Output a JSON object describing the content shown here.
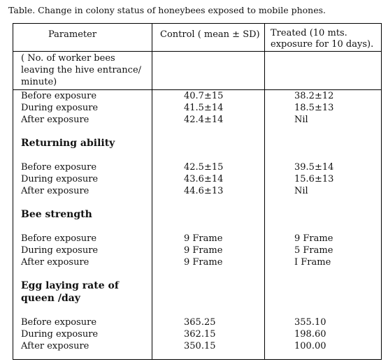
{
  "caption": "Table. Change in colony status of honeybees exposed to mobile phones.",
  "header": {
    "parameter": "Parameter",
    "control": "Control ( mean ± SD)",
    "treated_line1": "Treated (10 mts.",
    "treated_line2": "exposure for 10 days)."
  },
  "intro_lines": [
    "( No. of worker bees",
    "leaving the hive entrance/",
    "minute)"
  ],
  "groups": [
    {
      "rows": [
        {
          "label": "Before exposure",
          "control": "40.7±15",
          "treated": "38.2±12"
        },
        {
          "label": "During exposure",
          "control": "41.5±14",
          "treated": "18.5±13"
        },
        {
          "label": "After exposure",
          "control": "42.4±14",
          "treated": "Nil"
        }
      ]
    },
    {
      "title": "Returning ability",
      "rows": [
        {
          "label": "Before exposure",
          "control": "42.5±15",
          "treated": "39.5±14"
        },
        {
          "label": "During exposure",
          "control": "43.6±14",
          "treated": "15.6±13"
        },
        {
          "label": "After exposure",
          "control": "44.6±13",
          "treated": "Nil"
        }
      ]
    },
    {
      "title": "Bee strength",
      "rows": [
        {
          "label": "Before exposure",
          "control": "9 Frame",
          "treated": "9 Frame"
        },
        {
          "label": "During exposure",
          "control": "9 Frame",
          "treated": "5 Frame"
        },
        {
          "label": "After exposure",
          "control": "9 Frame",
          "treated": "I Frame"
        }
      ]
    },
    {
      "title_line1": "Egg laying rate of",
      "title_line2": "queen /day",
      "rows": [
        {
          "label": "Before exposure",
          "control": "365.25",
          "treated": "355.10"
        },
        {
          "label": "During exposure",
          "control": "362.15",
          "treated": "198.60"
        },
        {
          "label": "After exposure",
          "control": "350.15",
          "treated": "100.00"
        }
      ]
    }
  ]
}
